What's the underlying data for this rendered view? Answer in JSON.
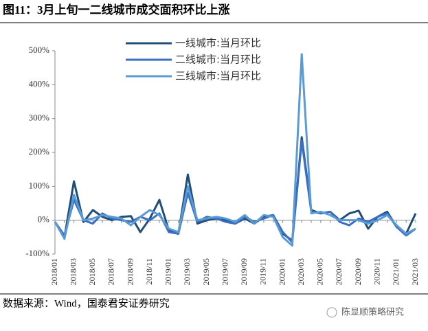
{
  "chart_data": {
    "type": "line",
    "title": "图11：3月上旬一二线城市成交面积环比上涨",
    "categories": [
      "2018/01",
      null,
      "2018/03",
      null,
      "2018/05",
      null,
      "2018/07",
      null,
      "2018/09",
      null,
      "2018/11",
      null,
      "2019/01",
      null,
      "2019/03",
      null,
      "2019/05",
      null,
      "2019/07",
      null,
      "2019/09",
      null,
      "2019/11",
      null,
      "2020/01",
      null,
      "2020/03",
      null,
      "2020/05",
      null,
      "2020/07",
      null,
      "2020/09",
      null,
      "2020/11",
      null,
      "2021/01",
      null,
      "2021/03"
    ],
    "series": [
      {
        "name": "一线城市:当月环比",
        "color": "#1f4e79",
        "values": [
          -5,
          -50,
          115,
          -5,
          30,
          10,
          0,
          10,
          12,
          -35,
          5,
          60,
          -30,
          -40,
          135,
          -10,
          0,
          5,
          0,
          -10,
          5,
          -10,
          10,
          15,
          -40,
          -60,
          245,
          30,
          20,
          25,
          0,
          20,
          28,
          -25,
          10,
          25,
          -20,
          -40,
          20
        ]
      },
      {
        "name": "二线城市:当月环比",
        "color": "#3a6fc4",
        "values": [
          -5,
          -45,
          60,
          0,
          -10,
          20,
          5,
          0,
          -5,
          10,
          0,
          20,
          -35,
          -40,
          80,
          -5,
          10,
          5,
          -5,
          -10,
          10,
          -5,
          5,
          15,
          -35,
          -65,
          235,
          25,
          20,
          25,
          -5,
          -15,
          5,
          -5,
          10,
          20,
          -20,
          -45,
          -25
        ]
      },
      {
        "name": "三线城市:当月环比",
        "color": "#5b9bd5",
        "values": [
          -5,
          -55,
          75,
          0,
          5,
          15,
          10,
          5,
          -15,
          10,
          30,
          15,
          -25,
          -35,
          100,
          0,
          5,
          10,
          5,
          -5,
          15,
          -10,
          15,
          10,
          -50,
          -75,
          490,
          20,
          25,
          15,
          0,
          0,
          0,
          -10,
          0,
          15,
          -15,
          -40,
          -25
        ]
      }
    ],
    "ylim": [
      -100,
      500
    ],
    "yticks": [
      {
        "value": -100,
        "label": "-100%"
      },
      {
        "value": 0,
        "label": "0%"
      },
      {
        "value": 100,
        "label": "100%"
      },
      {
        "value": 200,
        "label": "200%"
      },
      {
        "value": 300,
        "label": "300%"
      },
      {
        "value": 400,
        "label": "400%"
      },
      {
        "value": 500,
        "label": "500%"
      }
    ],
    "legend": "top"
  },
  "source": "数据来源：Wind，国泰君安证券研究",
  "watermark": "陈显顺策略研究"
}
